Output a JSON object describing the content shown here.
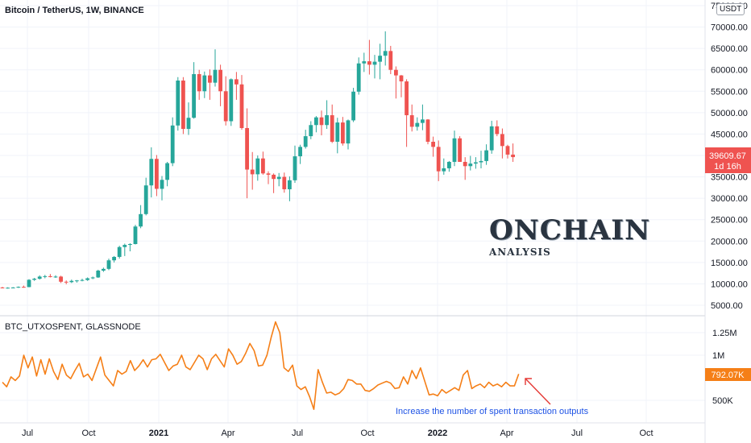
{
  "chart_data": [
    {
      "type": "candlestick",
      "title": "Bitcoin / TetherUS, 1W, BINANCE",
      "unit": "USDT",
      "ylim": [
        3000,
        75000
      ],
      "y_ticks": [
        "75000.00",
        "70000.00",
        "65000.00",
        "60000.00",
        "55000.00",
        "50000.00",
        "45000.00",
        "40000.00",
        "35000.00",
        "30000.00",
        "25000.00",
        "20000.00",
        "15000.00",
        "10000.00",
        "5000.00"
      ],
      "last_price": "39609.67",
      "countdown": "1d 16h",
      "colors": {
        "up": "#26a69a",
        "down": "#ef5350"
      },
      "x_axis_labels": [
        "Jul",
        "Oct",
        "2021",
        "Apr",
        "Jul",
        "Oct",
        "2022",
        "Apr",
        "Jul",
        "Oct"
      ],
      "candles": [
        [
          9150,
          9300,
          8950,
          9050
        ],
        [
          9050,
          9200,
          8900,
          9100
        ],
        [
          9100,
          9250,
          9000,
          9150
        ],
        [
          9150,
          9400,
          9050,
          9300
        ],
        [
          9300,
          9600,
          9100,
          9250
        ],
        [
          9250,
          11100,
          9200,
          10950
        ],
        [
          10950,
          11400,
          10700,
          11200
        ],
        [
          11200,
          12000,
          11000,
          11700
        ],
        [
          11700,
          12100,
          11300,
          11800
        ],
        [
          11800,
          12300,
          11500,
          11600
        ],
        [
          11600,
          12000,
          11400,
          11700
        ],
        [
          11700,
          11900,
          10200,
          10500
        ],
        [
          10500,
          10800,
          9900,
          10400
        ],
        [
          10400,
          11000,
          10200,
          10700
        ],
        [
          10700,
          10900,
          10300,
          10800
        ],
        [
          10800,
          11200,
          10600,
          10900
        ],
        [
          10900,
          11500,
          10700,
          11300
        ],
        [
          11300,
          11700,
          11100,
          11500
        ],
        [
          11500,
          13300,
          11400,
          13100
        ],
        [
          13100,
          13800,
          12800,
          13500
        ],
        [
          13500,
          15900,
          13200,
          15500
        ],
        [
          15500,
          16500,
          15000,
          16300
        ],
        [
          16300,
          18900,
          15900,
          18600
        ],
        [
          18600,
          19400,
          16500,
          19100
        ],
        [
          19100,
          19500,
          17600,
          19300
        ],
        [
          19300,
          23800,
          19200,
          23400
        ],
        [
          23400,
          28400,
          23000,
          26300
        ],
        [
          26300,
          34800,
          26000,
          33000
        ],
        [
          33000,
          41900,
          30200,
          39200
        ],
        [
          39200,
          40100,
          30500,
          32200
        ],
        [
          32200,
          35200,
          29500,
          34300
        ],
        [
          34300,
          38500,
          32800,
          38200
        ],
        [
          38200,
          48900,
          37500,
          47000
        ],
        [
          47000,
          58300,
          45800,
          57500
        ],
        [
          57500,
          58300,
          45000,
          46200
        ],
        [
          46200,
          52400,
          44800,
          48800
        ],
        [
          48800,
          61800,
          48600,
          59000
        ],
        [
          59000,
          60000,
          53000,
          55000
        ],
        [
          55000,
          59600,
          53400,
          58700
        ],
        [
          58700,
          60100,
          53000,
          57000
        ],
        [
          57000,
          64800,
          56100,
          60000
        ],
        [
          60000,
          61200,
          51500,
          55000
        ],
        [
          55000,
          58500,
          47000,
          48000
        ],
        [
          48000,
          58000,
          46900,
          57800
        ],
        [
          57800,
          59500,
          53000,
          56600
        ],
        [
          56600,
          58800,
          46000,
          46400
        ],
        [
          46400,
          51000,
          30000,
          36700
        ],
        [
          36700,
          40800,
          32000,
          35600
        ],
        [
          35600,
          40000,
          34100,
          39300
        ],
        [
          39300,
          40900,
          35500,
          35800
        ],
        [
          35800,
          36300,
          33300,
          35500
        ],
        [
          35500,
          35800,
          31200,
          34500
        ],
        [
          34500,
          35900,
          32800,
          35000
        ],
        [
          35000,
          36000,
          31300,
          32100
        ],
        [
          32100,
          35100,
          29300,
          34200
        ],
        [
          34200,
          42300,
          33600,
          39800
        ],
        [
          39800,
          42500,
          38000,
          42000
        ],
        [
          42000,
          46000,
          41600,
          44500
        ],
        [
          44500,
          48000,
          43800,
          47100
        ],
        [
          47100,
          49200,
          45400,
          48900
        ],
        [
          48900,
          50500,
          44700,
          47100
        ],
        [
          47100,
          52900,
          46200,
          49400
        ],
        [
          49400,
          51900,
          42900,
          43200
        ],
        [
          43200,
          48800,
          40500,
          47700
        ],
        [
          47700,
          49000,
          42300,
          42800
        ],
        [
          42800,
          48400,
          41400,
          48200
        ],
        [
          48200,
          55800,
          47800,
          54900
        ],
        [
          54900,
          62900,
          54200,
          61500
        ],
        [
          61500,
          64000,
          59500,
          62000
        ],
        [
          62000,
          67000,
          58900,
          61200
        ],
        [
          61200,
          63500,
          58000,
          61900
        ],
        [
          61900,
          66100,
          57800,
          63300
        ],
        [
          63300,
          69000,
          61000,
          64400
        ],
        [
          64400,
          65600,
          59000,
          60000
        ],
        [
          60000,
          60800,
          53300,
          58700
        ],
        [
          58700,
          58800,
          53600,
          57300
        ],
        [
          57300,
          57800,
          42000,
          49400
        ],
        [
          49400,
          51900,
          45600,
          46700
        ],
        [
          46700,
          48900,
          45800,
          47600
        ],
        [
          47600,
          51900,
          45900,
          48400
        ],
        [
          48400,
          48500,
          42600,
          43200
        ],
        [
          43200,
          44400,
          39700,
          42000
        ],
        [
          42000,
          43500,
          34000,
          36300
        ],
        [
          36300,
          39300,
          35500,
          37000
        ],
        [
          37000,
          38700,
          36200,
          38500
        ],
        [
          38500,
          45800,
          37500,
          44000
        ],
        [
          44000,
          44500,
          38500,
          38500
        ],
        [
          38500,
          39600,
          34300,
          37500
        ],
        [
          37500,
          39900,
          36500,
          38100
        ],
        [
          38100,
          39600,
          36900,
          38400
        ],
        [
          38400,
          41100,
          37000,
          38700
        ],
        [
          38700,
          42600,
          37800,
          41200
        ],
        [
          41200,
          48100,
          40400,
          46800
        ],
        [
          46800,
          48200,
          44500,
          45000
        ],
        [
          45000,
          46300,
          39300,
          42200
        ],
        [
          42200,
          42500,
          39300,
          40200
        ],
        [
          40200,
          42800,
          38500,
          39610
        ]
      ]
    },
    {
      "type": "line",
      "title": "BTC_UTXOSPENT, GLASSNODE",
      "ylim": [
        350000,
        1380000
      ],
      "y_ticks": [
        "1.25M",
        "1M",
        "500K"
      ],
      "last_value": "792.07K",
      "color": "#f57f17",
      "annotation": "Increase the number of spent transaction outputs",
      "values": [
        700000,
        650000,
        760000,
        720000,
        770000,
        1000000,
        860000,
        980000,
        770000,
        950000,
        790000,
        960000,
        820000,
        730000,
        900000,
        780000,
        740000,
        830000,
        910000,
        760000,
        790000,
        720000,
        850000,
        980000,
        780000,
        720000,
        660000,
        830000,
        790000,
        820000,
        940000,
        830000,
        880000,
        950000,
        870000,
        950000,
        960000,
        1010000,
        920000,
        830000,
        880000,
        900000,
        1000000,
        870000,
        840000,
        920000,
        1000000,
        960000,
        840000,
        960000,
        1010000,
        940000,
        870000,
        1070000,
        1000000,
        900000,
        930000,
        1020000,
        1130000,
        1050000,
        880000,
        890000,
        1000000,
        1200000,
        1370000,
        1250000,
        860000,
        820000,
        890000,
        660000,
        620000,
        650000,
        540000,
        400000,
        840000,
        700000,
        580000,
        590000,
        560000,
        580000,
        630000,
        730000,
        720000,
        680000,
        680000,
        610000,
        600000,
        630000,
        670000,
        690000,
        710000,
        690000,
        630000,
        640000,
        760000,
        680000,
        830000,
        740000,
        860000,
        710000,
        560000,
        570000,
        550000,
        620000,
        580000,
        610000,
        640000,
        610000,
        780000,
        830000,
        630000,
        660000,
        680000,
        640000,
        700000,
        660000,
        680000,
        650000,
        700000,
        660000,
        660000,
        792070
      ]
    }
  ]
}
